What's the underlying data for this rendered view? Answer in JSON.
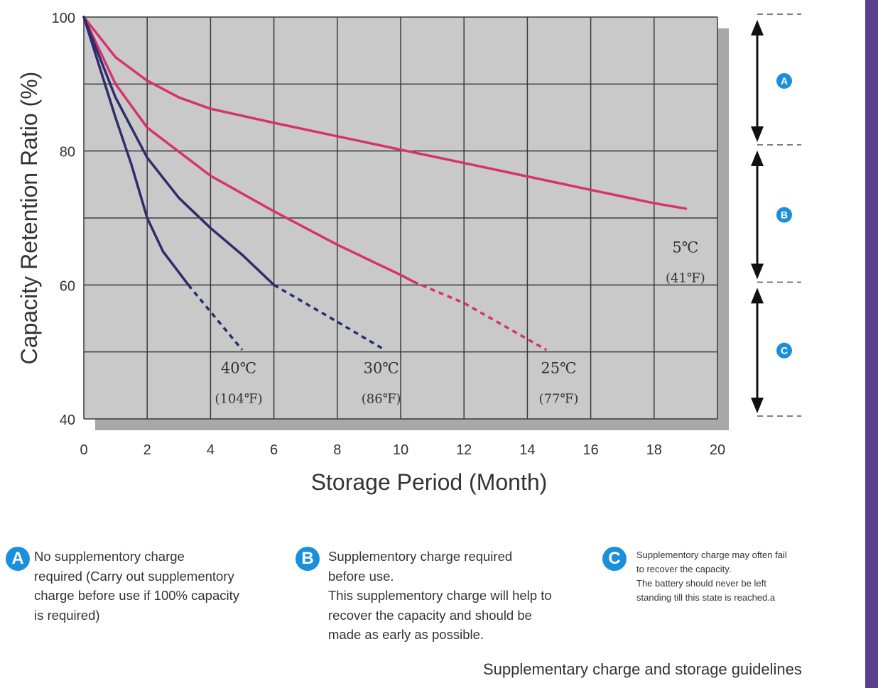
{
  "chart_data": {
    "type": "line",
    "xlabel": "Storage Period (Month)",
    "ylabel": "Capacity Retention Ratio (%)",
    "xlim": [
      0,
      20
    ],
    "ylim": [
      40,
      100
    ],
    "x_ticks": [
      "0",
      "2",
      "4",
      "6",
      "8",
      "10",
      "12",
      "14",
      "16",
      "18",
      "20"
    ],
    "y_ticks": [
      "40",
      "60",
      "80",
      "100"
    ],
    "grid": true,
    "series": [
      {
        "name": "5℃ (41℉)",
        "label_line1": "5℃",
        "label_line2": "(41℉)",
        "color": "#d6336c",
        "points": [
          [
            0,
            100
          ],
          [
            1,
            94
          ],
          [
            2,
            90.5
          ],
          [
            3,
            88
          ],
          [
            4,
            86.3
          ],
          [
            6,
            84.2
          ],
          [
            8,
            82.2
          ],
          [
            10,
            80.2
          ],
          [
            12,
            78.2
          ],
          [
            14,
            76.2
          ],
          [
            16,
            74.2
          ],
          [
            18,
            72.2
          ],
          [
            19,
            71.4
          ]
        ],
        "dashed_points": []
      },
      {
        "name": "25℃ (77℉)",
        "label_line1": "25℃",
        "label_line2": "(77℉)",
        "color": "#d6336c",
        "points": [
          [
            0,
            100
          ],
          [
            1,
            90
          ],
          [
            2,
            83.5
          ],
          [
            4,
            76.3
          ],
          [
            6,
            71
          ],
          [
            8,
            66
          ],
          [
            10,
            61.5
          ],
          [
            10.4,
            60.5
          ]
        ],
        "dashed_points": [
          [
            10.4,
            60.5
          ],
          [
            12,
            57.3
          ],
          [
            14.6,
            50.3
          ]
        ]
      },
      {
        "name": "30℃ (86℉)",
        "label_line1": "30℃",
        "label_line2": "(86℉)",
        "color": "#2d2d6e",
        "points": [
          [
            0,
            100
          ],
          [
            1,
            88
          ],
          [
            2,
            79
          ],
          [
            3,
            73
          ],
          [
            4,
            68.5
          ],
          [
            5,
            64.5
          ],
          [
            6,
            60
          ]
        ],
        "dashed_points": [
          [
            6,
            60
          ],
          [
            8,
            54.5
          ],
          [
            9.5,
            50.3
          ]
        ]
      },
      {
        "name": "40℃ (104℉)",
        "label_line1": "40℃",
        "label_line2": "(104℉)",
        "color": "#2d2d6e",
        "points": [
          [
            0,
            100
          ],
          [
            1,
            85
          ],
          [
            1.5,
            78
          ],
          [
            2,
            70
          ],
          [
            2.5,
            65
          ],
          [
            3.3,
            60
          ]
        ],
        "dashed_points": [
          [
            3.3,
            60
          ],
          [
            4,
            56
          ],
          [
            5,
            50.3
          ]
        ]
      }
    ],
    "zones": [
      {
        "badge": "A",
        "from": 100,
        "to": 80.5
      },
      {
        "badge": "B",
        "from": 80.5,
        "to": 60
      },
      {
        "badge": "C",
        "from": 60,
        "to": 40
      }
    ]
  },
  "notes": [
    {
      "badge": "A",
      "text": "No supplementory charge\nrequired (Carry out supplementory\ncharge before use if 100% capacity\nis required)"
    },
    {
      "badge": "B",
      "text": "Supplementory charge required\nbefore use.\nThis supplementory charge will help to\nrecover  the capacity and should be\nmade as early as possible."
    },
    {
      "badge": "C",
      "text": "Supplementory charge may often fail\nto recover the capacity.\nThe battery should never be left\nstanding till this state is reached.a"
    }
  ],
  "footer": "Supplementary charge and storage guidelines",
  "colors": {
    "badge": "#1a8fdc",
    "plot_bg": "#c9c9c9",
    "shadow": "#a8a8a8",
    "pink": "#d6336c",
    "navy": "#2d2d6e",
    "side_bar": "#5a3f8c"
  }
}
